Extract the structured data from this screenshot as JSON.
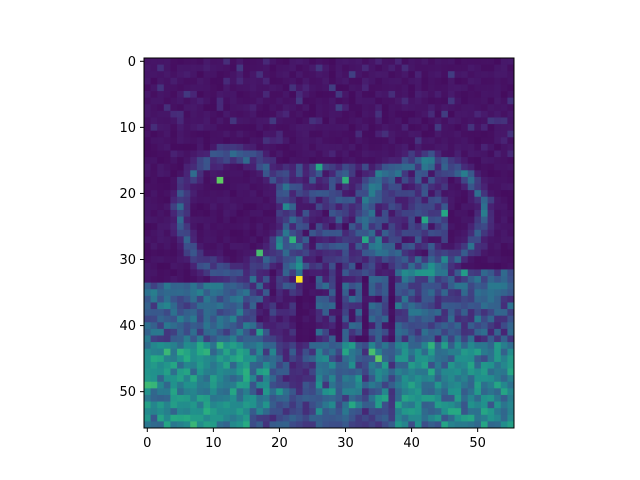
{
  "chart_data": {
    "type": "heatmap",
    "title": "",
    "xlabel": "",
    "ylabel": "",
    "colormap": "viridis",
    "rows": 56,
    "cols": 56,
    "xlim": [
      -0.5,
      55.5
    ],
    "ylim": [
      55.5,
      -0.5
    ],
    "x_ticks": [
      0,
      10,
      20,
      30,
      40,
      50
    ],
    "y_ticks": [
      0,
      10,
      20,
      30,
      40,
      50
    ],
    "x_tick_labels": [
      "0",
      "10",
      "20",
      "30",
      "40",
      "50"
    ],
    "y_tick_labels": [
      "0",
      "10",
      "20",
      "30",
      "40",
      "50"
    ],
    "grid": false,
    "legend": "none",
    "value_range": [
      0,
      1
    ],
    "description_of_values": "Approximate activation map: dark background with edge-like brighter structure outlining an elephant (ears, trunk, legs) over brighter textured ground in lower rows; brightest pixel near column 23, row 33.",
    "bright_points": [
      {
        "x": 23,
        "y": 33,
        "value": 1.0
      },
      {
        "x": 11,
        "y": 18,
        "value": 0.75
      },
      {
        "x": 17,
        "y": 29,
        "value": 0.7
      },
      {
        "x": 22,
        "y": 27,
        "value": 0.65
      },
      {
        "x": 26,
        "y": 16,
        "value": 0.6
      },
      {
        "x": 30,
        "y": 18,
        "value": 0.65
      },
      {
        "x": 33,
        "y": 27,
        "value": 0.6
      },
      {
        "x": 34,
        "y": 44,
        "value": 0.7
      },
      {
        "x": 35,
        "y": 45,
        "value": 0.75
      },
      {
        "x": 17,
        "y": 41,
        "value": 0.55
      },
      {
        "x": 17,
        "y": 47,
        "value": 0.55
      },
      {
        "x": 48,
        "y": 32,
        "value": 0.55
      },
      {
        "x": 42,
        "y": 24,
        "value": 0.6
      },
      {
        "x": 45,
        "y": 23,
        "value": 0.6
      }
    ]
  }
}
